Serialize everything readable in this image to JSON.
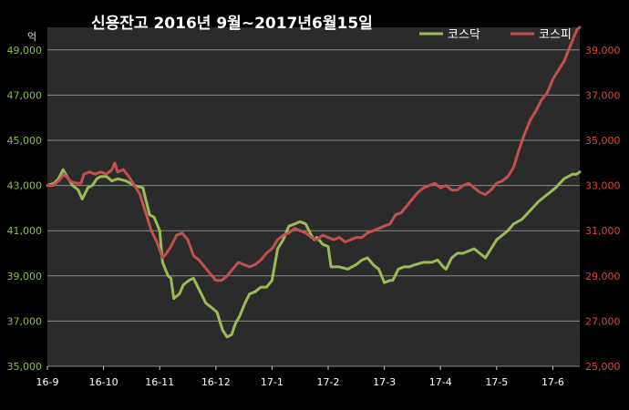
{
  "chart_data": {
    "type": "line",
    "title": "신용잔고 2016년 9월~2017년6월15일",
    "left_unit": "억",
    "x_ticks": [
      "16-9",
      "16-10",
      "16-11",
      "16-12",
      "17-1",
      "17-2",
      "17-3",
      "17-4",
      "17-5",
      "17-6"
    ],
    "x_range": [
      0,
      9.48
    ],
    "left_axis": {
      "ticks": [
        "35,000",
        "37,000",
        "39,000",
        "41,000",
        "43,000",
        "45,000",
        "47,000",
        "49,000"
      ],
      "min": 35000,
      "max": 50000,
      "color": "#8fbf4a"
    },
    "right_axis": {
      "ticks": [
        "25,000",
        "27,000",
        "29,000",
        "31,000",
        "33,000",
        "35,000",
        "37,000",
        "39,000"
      ],
      "min": 25000,
      "max": 40000,
      "color": "#d94a3a"
    },
    "grid": true,
    "legend_position": "top-right",
    "series": [
      {
        "name": "코스닥",
        "axis": "left",
        "color": "#9bbb59",
        "x": [
          0,
          0.12,
          0.2,
          0.28,
          0.35,
          0.45,
          0.55,
          0.62,
          0.72,
          0.8,
          0.88,
          0.95,
          1.05,
          1.15,
          1.25,
          1.4,
          1.55,
          1.7,
          1.82,
          1.9,
          2.0,
          2.05,
          2.15,
          2.2,
          2.25,
          2.35,
          2.42,
          2.52,
          2.6,
          2.72,
          2.82,
          2.92,
          3.02,
          3.12,
          3.2,
          3.28,
          3.35,
          3.42,
          3.52,
          3.6,
          3.7,
          3.8,
          3.9,
          4.0,
          4.05,
          4.1,
          4.2,
          4.3,
          4.4,
          4.5,
          4.6,
          4.7,
          4.75,
          4.8,
          4.9,
          5.0,
          5.05,
          5.1,
          5.2,
          5.35,
          5.5,
          5.6,
          5.7,
          5.8,
          5.9,
          6.0,
          6.1,
          6.15,
          6.25,
          6.35,
          6.45,
          6.55,
          6.7,
          6.85,
          6.95,
          7.05,
          7.1,
          7.2,
          7.3,
          7.4,
          7.5,
          7.6,
          7.7,
          7.8,
          7.9,
          8.0,
          8.1,
          8.2,
          8.3,
          8.45,
          8.6,
          8.75,
          8.9,
          9.05,
          9.2,
          9.35,
          9.42,
          9.48
        ],
        "values": [
          43000,
          43100,
          43300,
          43700,
          43400,
          43000,
          42800,
          42400,
          42900,
          43000,
          43300,
          43400,
          43400,
          43200,
          43300,
          43200,
          43000,
          42900,
          41700,
          41600,
          41000,
          39600,
          39000,
          38900,
          38000,
          38200,
          38600,
          38800,
          38900,
          38300,
          37800,
          37600,
          37400,
          36600,
          36300,
          36400,
          36900,
          37200,
          37800,
          38200,
          38300,
          38500,
          38500,
          38800,
          39500,
          40200,
          40600,
          41200,
          41300,
          41400,
          41300,
          40800,
          40600,
          40700,
          40400,
          40300,
          39400,
          39400,
          39400,
          39300,
          39500,
          39700,
          39800,
          39500,
          39300,
          38700,
          38800,
          38800,
          39300,
          39400,
          39400,
          39500,
          39600,
          39600,
          39700,
          39400,
          39300,
          39800,
          40000,
          40000,
          40100,
          40200,
          40000,
          39800,
          40200,
          40600,
          40800,
          41000,
          41300,
          41500,
          41900,
          42300,
          42600,
          42900,
          43300,
          43500,
          43500,
          43600
        ]
      },
      {
        "name": "코스피",
        "axis": "right",
        "color": "#c0504d",
        "x": [
          0,
          0.1,
          0.2,
          0.3,
          0.4,
          0.5,
          0.6,
          0.65,
          0.75,
          0.85,
          0.95,
          1.05,
          1.15,
          1.2,
          1.25,
          1.35,
          1.45,
          1.55,
          1.65,
          1.75,
          1.85,
          1.95,
          2.05,
          2.12,
          2.2,
          2.3,
          2.4,
          2.5,
          2.6,
          2.7,
          2.8,
          2.9,
          3.0,
          3.1,
          3.2,
          3.3,
          3.4,
          3.5,
          3.6,
          3.7,
          3.8,
          3.9,
          4.0,
          4.1,
          4.2,
          4.3,
          4.4,
          4.5,
          4.6,
          4.7,
          4.8,
          4.9,
          5.0,
          5.1,
          5.2,
          5.3,
          5.4,
          5.5,
          5.6,
          5.7,
          5.8,
          5.9,
          6.0,
          6.1,
          6.2,
          6.3,
          6.4,
          6.5,
          6.6,
          6.7,
          6.8,
          6.9,
          7.0,
          7.1,
          7.2,
          7.3,
          7.4,
          7.5,
          7.6,
          7.7,
          7.8,
          7.9,
          8.0,
          8.1,
          8.2,
          8.3,
          8.4,
          8.5,
          8.6,
          8.7,
          8.8,
          8.9,
          9.0,
          9.1,
          9.2,
          9.3,
          9.38,
          9.43,
          9.48
        ],
        "values": [
          33000,
          33000,
          33200,
          33500,
          33200,
          33100,
          33100,
          33500,
          33600,
          33500,
          33600,
          33500,
          33700,
          34000,
          33600,
          33700,
          33400,
          33000,
          32600,
          31800,
          31000,
          30500,
          29800,
          30000,
          30300,
          30800,
          30900,
          30600,
          29900,
          29700,
          29400,
          29100,
          28800,
          28800,
          29000,
          29300,
          29600,
          29500,
          29400,
          29500,
          29700,
          30000,
          30200,
          30600,
          30800,
          30900,
          31100,
          31000,
          30900,
          30700,
          30600,
          30800,
          30700,
          30600,
          30700,
          30500,
          30600,
          30700,
          30700,
          30900,
          31000,
          31100,
          31200,
          31300,
          31700,
          31800,
          32100,
          32400,
          32700,
          32900,
          33000,
          33100,
          32900,
          33000,
          32800,
          32800,
          33000,
          33100,
          32900,
          32700,
          32600,
          32800,
          33100,
          33200,
          33400,
          33800,
          34600,
          35300,
          35900,
          36300,
          36800,
          37100,
          37700,
          38100,
          38500,
          39100,
          39600,
          39900,
          40000
        ]
      }
    ]
  }
}
